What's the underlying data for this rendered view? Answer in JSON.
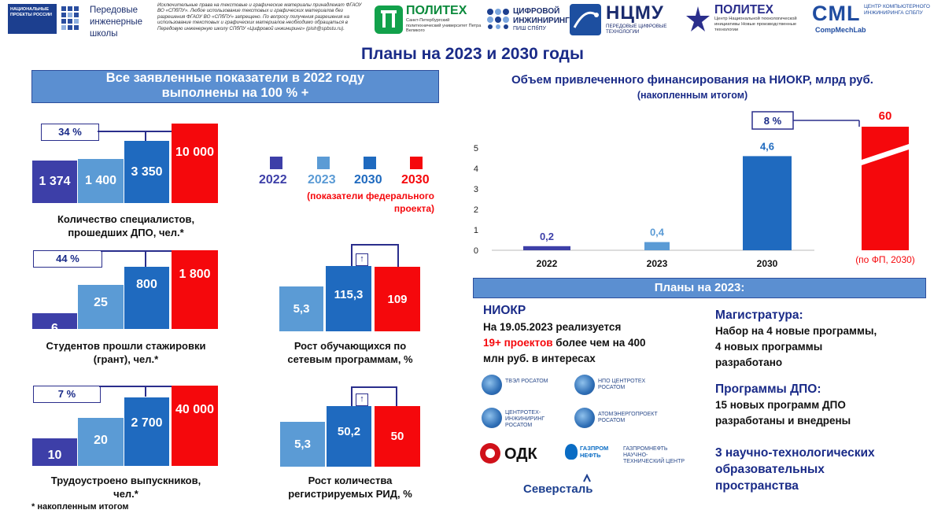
{
  "header": {
    "logo1_text": "Передовые инженерные школы",
    "logo1_badge": "НАЦИОНАЛЬНЫЕ ПРОЕКТЫ РОССИИ",
    "disclaimer": "Исключительные права на текстовые и графические материалы принадлежат ФГАОУ ВО «СПбПУ». Любое использование текстовых и графических материалов без разрешения ФГАОУ ВО «СПбПУ» запрещено. По вопросу получения разрешения на использование текстовых и графических материалов необходимо обращаться в Передовую инженерную школу СПбПУ «Цифровой инжиниринг» (pish@spbstu.ru).",
    "polytech_name": "ПОЛИТЕХ",
    "polytech_sub": "Санкт-Петербургский политехнический университет Петра Великого",
    "digital_eng": "ЦИФРОВОЙ ИНЖИНИРИНГ",
    "digital_eng_sub": "ПИШ СПбПУ",
    "ncmu": "НЦМУ",
    "ncmu_sub": "ПЕРЕДОВЫЕ ЦИФРОВЫЕ ТЕХНОЛОГИИ",
    "polytech2_name": "ПОЛИТЕХ",
    "polytech2_sub": "Центр Национальной технологической инициативы Новые производственные технологии",
    "cml": "CML",
    "cml_sub": "ЦЕНТР КОМПЬЮТЕРНОГО ИНЖИНИРИНГА СПБПУ",
    "cml_lab": "CompMechLab"
  },
  "title": "Планы на 2023 и 2030 годы",
  "left_banner": [
    "Все заявленные показатели в 2022 году",
    "выполнены на 100 % +"
  ],
  "legend": {
    "items": [
      {
        "label": "2022",
        "color": "#3d3fa8"
      },
      {
        "label": "2023",
        "color": "#5b9bd5"
      },
      {
        "label": "2030",
        "color": "#1f6abf"
      },
      {
        "label": "2030",
        "color": "#f5080c"
      }
    ],
    "note": [
      "(показатели федерального",
      "проекта)"
    ]
  },
  "groups": [
    {
      "pct": "34 %",
      "values": [
        "1 374",
        "1 400",
        "3 350",
        "10 000"
      ],
      "caption": [
        "Количество специалистов,",
        "прошедших ДПО, чел.*"
      ]
    },
    {
      "pct": "44 %",
      "values": [
        "6",
        "25",
        "800",
        "1 800"
      ],
      "caption": [
        "Студентов прошли стажировки",
        "(грант), чел.*"
      ]
    },
    {
      "pct": "7 %",
      "values": [
        "10",
        "20",
        "2 700",
        "40 000"
      ],
      "caption": [
        "Трудоустроено выпускников,",
        "чел.*"
      ]
    }
  ],
  "small_groups": [
    {
      "values": [
        "5,3",
        "115,3",
        "109"
      ],
      "caption": [
        "Рост обучающихся по",
        "сетевым программам, %"
      ]
    },
    {
      "values": [
        "5,3",
        "50,2",
        "50"
      ],
      "caption": [
        "Рост количества",
        "регистрируемых РИД, %"
      ]
    }
  ],
  "footnote": "* накопленным итогом",
  "chart_data": {
    "type": "bar",
    "title": "Объем привлеченного финансирования на НИОКР, млрд руб.",
    "subtitle": "(накопленным итогом)",
    "categories": [
      "2022",
      "2023",
      "2030",
      "(по ФП, 2030)"
    ],
    "values": [
      0.2,
      0.4,
      4.6,
      60
    ],
    "value_labels": [
      "0,2",
      "0,4",
      "4,6",
      "60"
    ],
    "colors": [
      "#3d3fa8",
      "#5b9bd5",
      "#1f6abf",
      "#f5080c"
    ],
    "ylim": [
      0,
      5
    ],
    "yticks": [
      "0",
      "1",
      "2",
      "3",
      "4",
      "5"
    ],
    "annotation": "8 %",
    "broken_axis_last_bar": true
  },
  "plans": {
    "banner": "Планы на 2023:",
    "niokr_title": "НИОКР",
    "niokr_line1": "На 19.05.2023 реализуется",
    "niokr_highlight": "19+ проектов",
    "niokr_line2_rest": " более чем на 400",
    "niokr_line3": "млн руб. в интересах",
    "partners": [
      "ТВЭЛ РОСАТОМ",
      "НПО ЦЕНТРОТЕХ РОСАТОМ",
      "ЦЕНТРОТЕХ-ИНЖИНИРИНГ РОСАТОМ",
      "АТОМЭНЕРГОПРОЕКТ РОСАТОМ",
      "ОДК",
      "ГАЗПРОМ НЕФТЬ",
      "ГАЗПРОМНЕФТЬ НАУЧНО-ТЕХНИЧЕСКИЙ ЦЕНТР",
      "Северсталь"
    ],
    "masters_title": "Магистратура:",
    "masters_text": [
      "Набор на 4 новые программы,",
      "4 новых программы",
      "разработано"
    ],
    "dpo_title": "Программы ДПО:",
    "dpo_text": [
      "15 новых программ ДПО",
      "разработаны и внедрены"
    ],
    "spaces_title": [
      "3 научно-технологических",
      "образовательных",
      "пространства"
    ]
  }
}
